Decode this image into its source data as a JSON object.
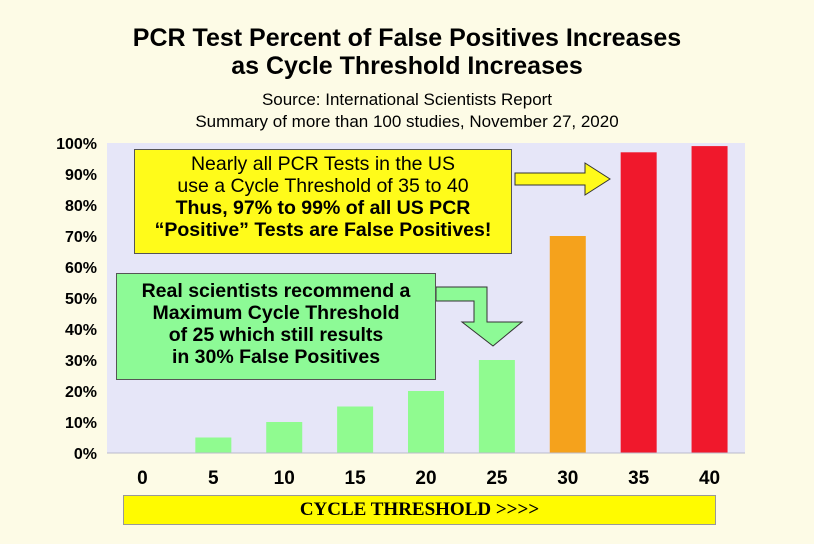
{
  "chart_data": {
    "type": "bar",
    "title_line1": "PCR Test Percent of False Positives Increases",
    "title_line2": "as Cycle Threshold Increases",
    "source": "Source:  International Scientists Report",
    "summary": "Summary of more than 100 studies, November 27, 2020",
    "categories": [
      "0",
      "5",
      "10",
      "15",
      "20",
      "25",
      "30",
      "35",
      "40"
    ],
    "values": [
      0,
      5,
      10,
      15,
      20,
      30,
      70,
      97,
      99
    ],
    "bar_colors": [
      "#90fb90",
      "#90fb90",
      "#90fb90",
      "#90fb90",
      "#90fb90",
      "#90fb90",
      "#f5a21c",
      "#f0182c",
      "#f0182c"
    ],
    "ylim": [
      0,
      100
    ],
    "yticks": [
      "0%",
      "10%",
      "20%",
      "30%",
      "40%",
      "50%",
      "60%",
      "70%",
      "80%",
      "90%",
      "100%"
    ],
    "xlabel": "CYCLE THRESHOLD >>>>",
    "ylabel": "",
    "grid": false
  },
  "callout_us": {
    "line1": "Nearly all PCR Tests in the US",
    "line2": "use a Cycle Threshold of 35 to 40",
    "line3": "Thus, 97% to 99% of all US PCR",
    "line4": "“Positive” Tests are False Positives!"
  },
  "callout_real": {
    "line1": "Real scientists recommend a",
    "line2": "Maximum Cycle Threshold",
    "line3": "of 25 which still results",
    "line4": "in 30% False Positives"
  },
  "colors": {
    "page_bg": "#fdfbe6",
    "plot_bg": "#e6e6f8",
    "yellow_box": "#fffb1a",
    "green_box": "#8dfa96"
  }
}
